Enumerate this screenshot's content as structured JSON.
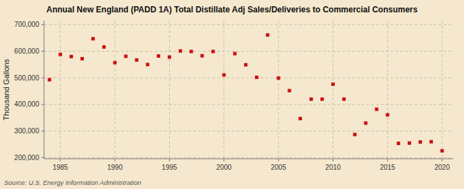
{
  "chart_data": {
    "type": "scatter",
    "title": "Annual New England (PADD 1A) Total Distillate Adj Sales/Deliveries to Commercial Consumers",
    "ylabel": "Thousand Gallons",
    "annotations": [
      "Source: U.S. Energy Information Administration"
    ],
    "color": "#cc1111",
    "marker": "square",
    "grid": true,
    "x": [
      1984,
      1985,
      1986,
      1987,
      1988,
      1989,
      1990,
      1991,
      1992,
      1993,
      1994,
      1995,
      1996,
      1997,
      1998,
      1999,
      2000,
      2001,
      2002,
      2003,
      2004,
      2005,
      2006,
      2007,
      2008,
      2009,
      2010,
      2011,
      2012,
      2013,
      2014,
      2015,
      2016,
      2017,
      2018,
      2019,
      2020
    ],
    "values": [
      493000,
      588000,
      580000,
      572000,
      647000,
      616000,
      557000,
      581000,
      567000,
      550000,
      582000,
      578000,
      601000,
      599000,
      583000,
      599000,
      511000,
      591000,
      549000,
      502000,
      661000,
      499000,
      452000,
      347000,
      420000,
      420000,
      476000,
      420000,
      287000,
      330000,
      382000,
      361000,
      254000,
      255000,
      259000,
      260000,
      226000
    ],
    "xlim": [
      1983.5,
      2021
    ],
    "ylim": [
      196000,
      715000
    ],
    "xticks": [
      1985,
      1990,
      1995,
      2000,
      2005,
      2010,
      2015,
      2020
    ],
    "yticks": [
      {
        "value": 200000,
        "label": "200,000"
      },
      {
        "value": 300000,
        "label": "300,000"
      },
      {
        "value": 400000,
        "label": "400,000"
      },
      {
        "value": 500000,
        "label": "500,000"
      },
      {
        "value": 600000,
        "label": "600,000"
      },
      {
        "value": 700000,
        "label": "700,000"
      }
    ]
  }
}
